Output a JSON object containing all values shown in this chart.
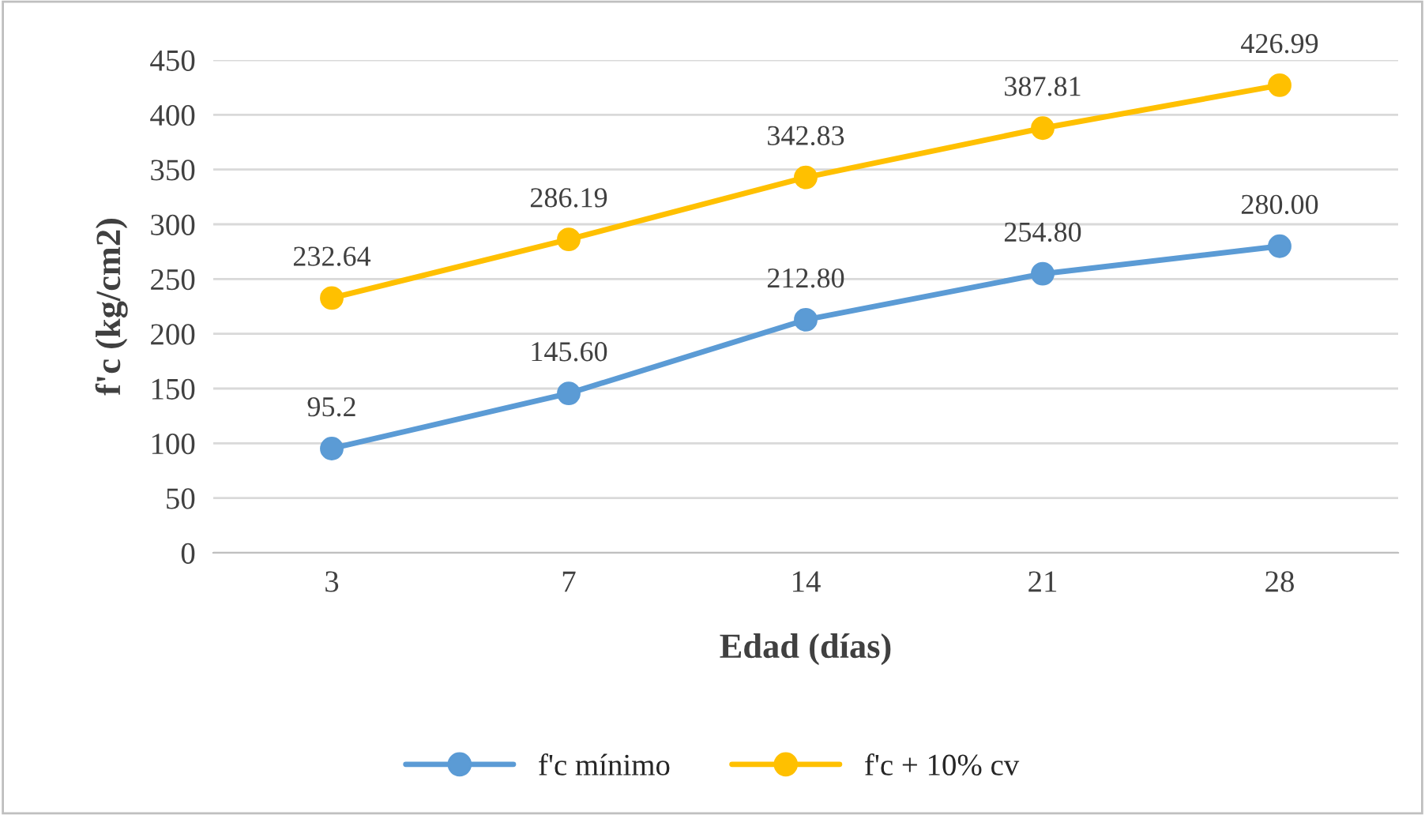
{
  "chart_data": {
    "type": "line",
    "xlabel": "Edad (días)",
    "ylabel": "f'c (kg/cm2)",
    "categories": [
      "3",
      "7",
      "14",
      "21",
      "28"
    ],
    "series": [
      {
        "name": "f'c mínimo",
        "color": "#5b9bd5",
        "values": [
          95.2,
          145.6,
          212.8,
          254.8,
          280.0
        ],
        "value_labels": [
          "95.2",
          "145.60",
          "212.80",
          "254.80",
          "280.00"
        ]
      },
      {
        "name": "f'c + 10% cv",
        "color": "#ffc000",
        "values": [
          232.64,
          286.19,
          342.83,
          387.81,
          426.99
        ],
        "value_labels": [
          "232.64",
          "286.19",
          "342.83",
          "387.81",
          "426.99"
        ]
      }
    ],
    "ylim": [
      0,
      450
    ],
    "yticks": [
      0,
      50,
      100,
      150,
      200,
      250,
      300,
      350,
      400,
      450
    ],
    "grid": "y",
    "legend": "bottom",
    "marker": "circle",
    "line_style": "solid"
  }
}
